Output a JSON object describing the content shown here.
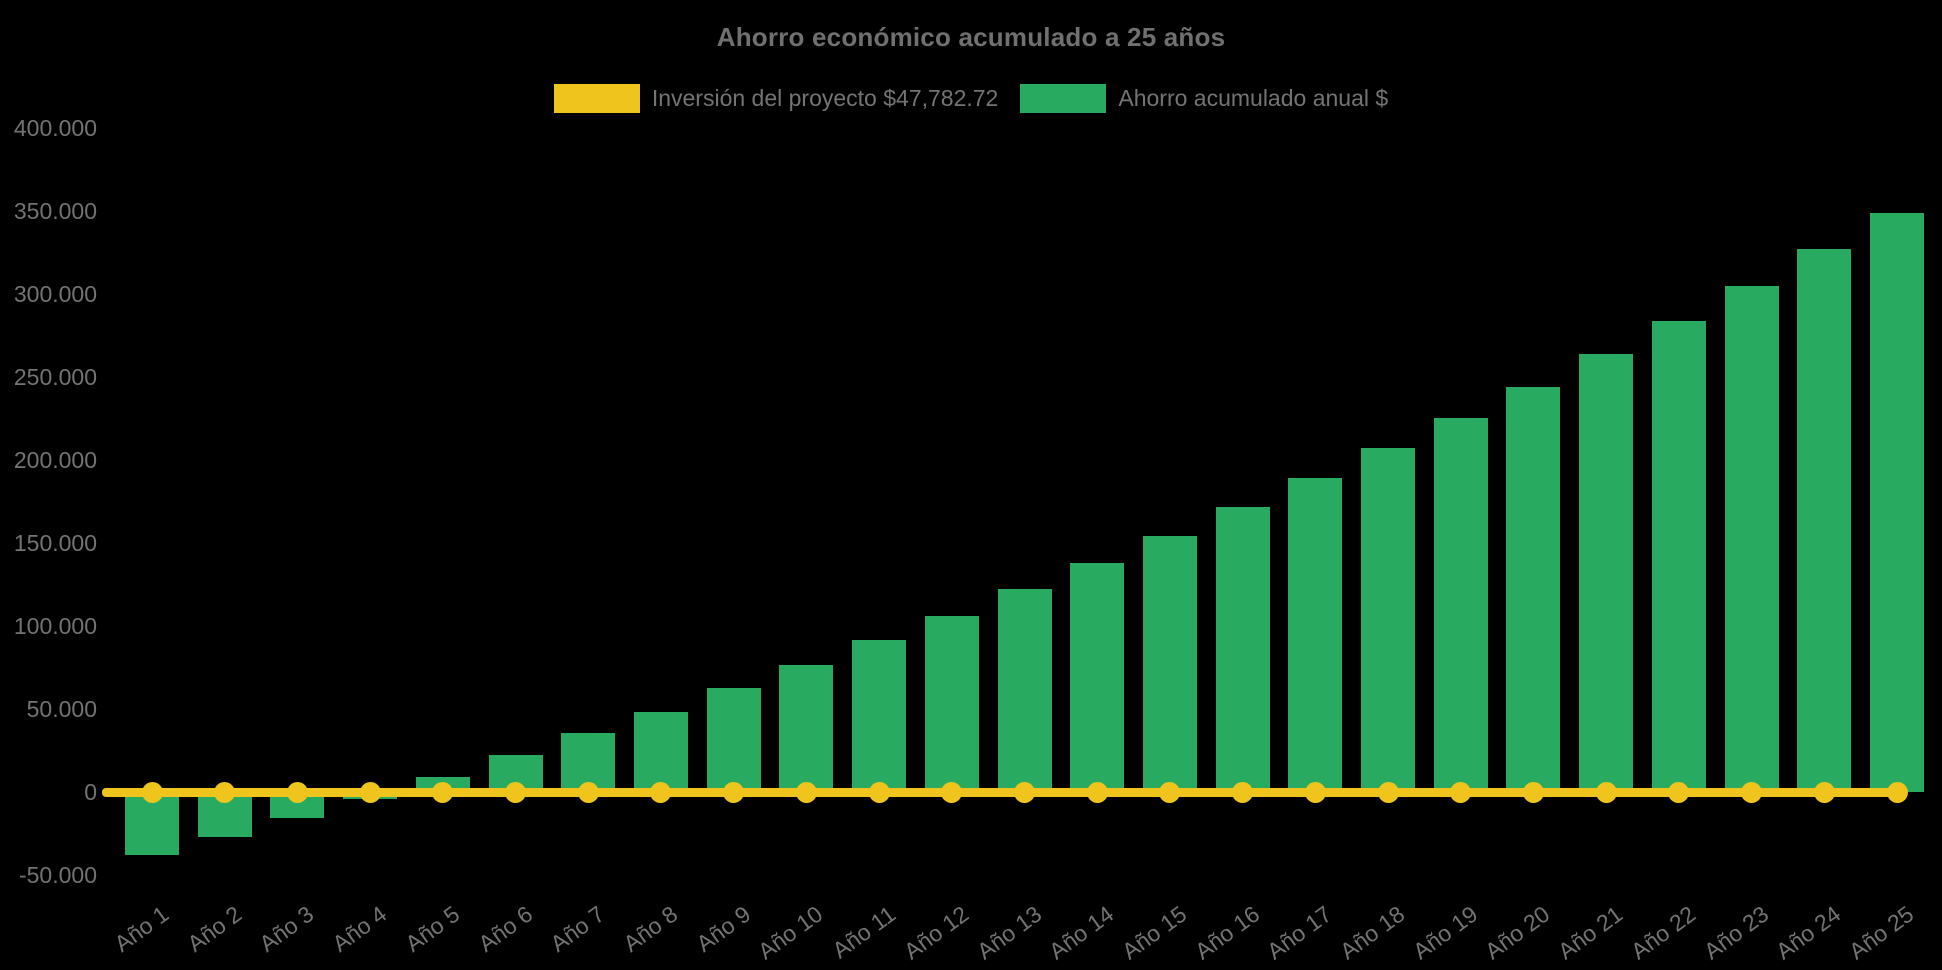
{
  "chart_data": {
    "type": "bar",
    "title": "Ahorro económico acumulado a 25 años",
    "categories": [
      "Año 1",
      "Año 2",
      "Año 3",
      "Año 4",
      "Año 5",
      "Año 6",
      "Año 7",
      "Año 8",
      "Año 9",
      "Año 10",
      "Año 11",
      "Año 12",
      "Año 13",
      "Año 14",
      "Año 15",
      "Año 16",
      "Año 17",
      "Año 18",
      "Año 19",
      "Año 20",
      "Año 21",
      "Año 22",
      "Año 23",
      "Año 24",
      "Año 25"
    ],
    "series": [
      {
        "name": "Inversión del proyecto $47,782.72",
        "type": "line",
        "color": "#efc41c",
        "marker": "circle",
        "constant_value": 0
      },
      {
        "name": "Ahorro acumulado anual $",
        "type": "bar",
        "color": "#28aa60",
        "values": [
          -38000,
          -27000,
          -15500,
          -4500,
          9000,
          22000,
          35500,
          48000,
          62500,
          76500,
          91500,
          106000,
          122000,
          138000,
          154500,
          171500,
          189000,
          207000,
          225500,
          244000,
          264000,
          284000,
          305000,
          327000,
          349000
        ]
      }
    ],
    "ylim": [
      -50000,
      400000
    ],
    "ytick_step": 50000,
    "ytick_labels": [
      "-50.000",
      "0",
      "50.000",
      "100.000",
      "150.000",
      "200.000",
      "250.000",
      "300.000",
      "350.000",
      "400.000"
    ],
    "xlabel": "",
    "ylabel": "",
    "grid": false,
    "legend_position": "top-center",
    "background_color": "#000000",
    "text_color": "#737373"
  }
}
